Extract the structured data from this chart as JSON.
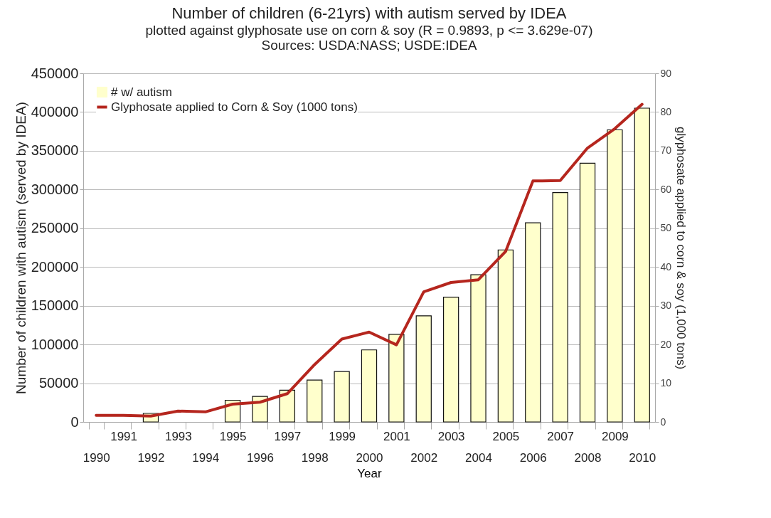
{
  "chart_data": {
    "type": "bar",
    "title": "Number of children (6-21yrs) with autism served by IDEA",
    "subtitle": "plotted against glyphosate use on corn & soy (R = 0.9893, p <= 3.629e-07)",
    "annotations": [
      "Sources: USDA:NASS; USDE:IDEA"
    ],
    "xlabel": "Year",
    "ylabel": "Number of children with autism (served by IDEA)",
    "y2label": "glyphosate applied to corn & soy (1,000 tons)",
    "categories": [
      "1990",
      "1991",
      "1992",
      "1993",
      "1994",
      "1995",
      "1996",
      "1997",
      "1998",
      "1999",
      "2000",
      "2001",
      "2002",
      "2003",
      "2004",
      "2005",
      "2006",
      "2007",
      "2008",
      "2009",
      "2010"
    ],
    "series": [
      {
        "name": "# w/ autism",
        "color": "#ffffcc",
        "values": [
          null,
          null,
          11000,
          null,
          null,
          28000,
          33000,
          41000,
          54000,
          65000,
          93000,
          113000,
          137000,
          161000,
          190000,
          222000,
          257000,
          296000,
          334000,
          377000,
          405000
        ]
      },
      {
        "name": "Glyphosate applied to Corn & Soy (1000 tons)",
        "type": "line",
        "axis": "y2",
        "color": "#b5261e",
        "values": [
          1.7,
          1.7,
          1.5,
          2.8,
          2.6,
          4.6,
          5.1,
          7.3,
          14.8,
          21.4,
          23.2,
          19.9,
          33.6,
          36,
          36.7,
          44,
          62.2,
          62.3,
          70.7,
          75.7,
          82
        ]
      }
    ],
    "ylim": [
      0,
      450000
    ],
    "yticks": [
      0,
      {
        "value": 50000,
        "label": "50000"
      },
      {
        "value": 100000,
        "label": "100000"
      },
      {
        "value": 150000,
        "label": "150000"
      },
      {
        "value": 200000,
        "label": "200000"
      },
      {
        "value": 250000,
        "label": "250000"
      },
      {
        "value": 300000,
        "label": "300000"
      },
      {
        "value": 350000,
        "label": "350000"
      },
      {
        "value": 400000,
        "label": "400000"
      },
      {
        "value": 450000,
        "label": "450000"
      }
    ],
    "y2lim": [
      0,
      90
    ],
    "y2ticks": [
      0,
      10,
      20,
      30,
      40,
      50,
      60,
      70,
      80,
      90
    ],
    "grid": "y",
    "legend": "top left"
  }
}
